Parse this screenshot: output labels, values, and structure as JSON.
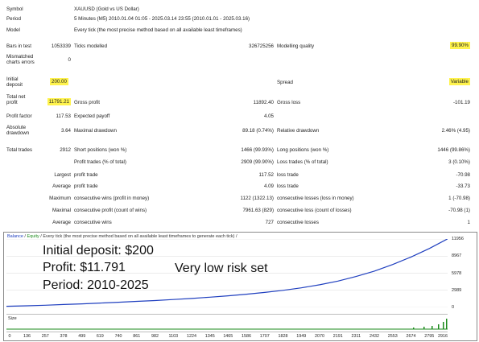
{
  "report": {
    "symbol_label": "Symbol",
    "symbol_value": "XAUUSD (Gold vs US Dollar)",
    "period_label": "Period",
    "period_value": "5 Minutes (M5) 2010.01.04 01:05 - 2025.03.14 23:55 (2010.01.01 - 2025.03.16)",
    "model_label": "Model",
    "model_value": "Every tick (the most precise method based on all available least timeframes)",
    "bars_label": "Bars in test",
    "bars_value": "1053339",
    "ticks_label": "Ticks modelled",
    "ticks_value": "326725256",
    "quality_label": "Modelling quality",
    "quality_value": "99.90%",
    "mismatch_label1": "Mismatched",
    "mismatch_label2": "charts errors",
    "mismatch_value": "0",
    "deposit_label1": "Initial",
    "deposit_label2": "deposit",
    "deposit_value": "200.00",
    "spread_label": "Spread",
    "spread_value": "Variable",
    "netprofit_label1": "Total net",
    "netprofit_label2": "profit",
    "netprofit_value": "11791.21",
    "grossprofit_label": "Gross profit",
    "grossprofit_value": "11892.40",
    "grossloss_label": "Gross loss",
    "grossloss_value": "-101.19",
    "pf_label": "Profit factor",
    "pf_value": "117.53",
    "payoff_label": "Expected payoff",
    "payoff_value": "4.05",
    "absdd_label1": "Absolute",
    "absdd_label2": "drawdown",
    "absdd_value": "3.64",
    "maxdd_label": "Maximal drawdown",
    "maxdd_value": "89.18 (0.74%)",
    "reldd_label": "Relative drawdown",
    "reldd_value": "2.46% (4.95)",
    "trades_label": "Total trades",
    "trades_value": "2912",
    "short_label": "Short positions (won %)",
    "short_value": "1466 (99.93%)",
    "long_label": "Long positions (won %)",
    "long_value": "1446 (99.86%)",
    "ptrades_label": "Profit trades (% of total)",
    "ptrades_value": "2909 (99.90%)",
    "ltrades_label": "Loss trades (% of total)",
    "ltrades_value": "3 (0.10%)",
    "largest_label": "Largest",
    "lpt_label": "profit trade",
    "lpt_value": "117.52",
    "llt_label": "loss trade",
    "llt_value": "-70.98",
    "average_label": "Average",
    "apt_label": "profit trade",
    "apt_value": "4.09",
    "alt_label": "loss trade",
    "alt_value": "-33.73",
    "maximum_label": "Maximum",
    "mcw_label": "consecutive wins (profit in money)",
    "mcw_value": "1122 (1322.13)",
    "mcl_label": "consecutive losses (loss in money)",
    "mcl_value": "1 (-70.98)",
    "maximal_label": "Maximal",
    "mcp_label": "consecutive profit (count of wins)",
    "mcp_value": "7961.63 (829)",
    "mclc_label": "consecutive loss (count of losses)",
    "mclc_value": "-70.98 (1)",
    "average2_label": "Average",
    "acw_label": "consecutive wins",
    "acw_value": "727",
    "acl_label": "consecutive losses",
    "acl_value": "1"
  },
  "chart": {
    "legend_balance": "Balance",
    "legend_sep": " / ",
    "legend_equity": "Equity",
    "legend_rest": " / Every tick (the most precise method based on all available least timeframes to generate each tick) /",
    "size_label": "Size",
    "annotations": {
      "deposit": "Initial deposit: $200",
      "profit": "Profit: $11.791",
      "period": "Period: 2010-2025",
      "risk": "Very low risk set"
    },
    "colors": {
      "balance": "#1f3fbf",
      "equity": "#1a8a1a",
      "grid": "#d9d9d9"
    }
  },
  "chart_data": {
    "type": "line",
    "title": "",
    "x_ticks": [
      "0",
      "136",
      "257",
      "378",
      "499",
      "619",
      "740",
      "861",
      "982",
      "1103",
      "1224",
      "1345",
      "1465",
      "1586",
      "1707",
      "1828",
      "1949",
      "2070",
      "2191",
      "2311",
      "2432",
      "2553",
      "2674",
      "2795",
      "2916"
    ],
    "y_ticks": [
      "11956",
      "8967",
      "5978",
      "2989",
      "0"
    ],
    "xlim": [
      0,
      2916
    ],
    "ylim": [
      0,
      11956
    ],
    "series": [
      {
        "name": "Balance",
        "x": [
          0,
          136,
          257,
          378,
          499,
          619,
          740,
          861,
          982,
          1103,
          1224,
          1345,
          1465,
          1586,
          1707,
          1828,
          1949,
          2070,
          2191,
          2311,
          2432,
          2553,
          2674,
          2795,
          2916
        ],
        "y": [
          200,
          280,
          380,
          500,
          620,
          760,
          900,
          1050,
          1200,
          1380,
          1560,
          1780,
          2020,
          2300,
          2620,
          2980,
          3420,
          3950,
          4600,
          5400,
          6350,
          7500,
          8800,
          10300,
          11991
        ]
      }
    ]
  }
}
